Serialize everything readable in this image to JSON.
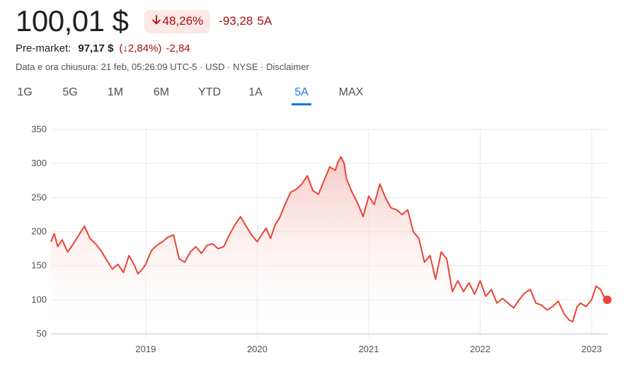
{
  "header": {
    "price": "100,01 $",
    "change_pct": "48,26%",
    "change_arrow_icon": "arrow-down-icon",
    "change_abs": "-93,28",
    "change_period": "5A"
  },
  "premarket": {
    "label": "Pre-market:",
    "price": "97,17 $",
    "pct": "(↓2,84%)",
    "abs": "-2,84"
  },
  "meta": {
    "date": "Data e ora chiusura: 21 feb, 05:26:09 UTC-5",
    "currency": "USD",
    "exchange": "NYSE",
    "disclaimer": "Disclaimer",
    "sep": " · "
  },
  "tabs": [
    "1G",
    "5G",
    "1M",
    "6M",
    "YTD",
    "1A",
    "5A",
    "MAX"
  ],
  "active_tab": "5A",
  "colors": {
    "line": "#ea4335",
    "fill_top": "#f6c4bf",
    "negative": "#a50e0e",
    "accent": "#1a73e8"
  },
  "chart_data": {
    "type": "area",
    "ylim": [
      50,
      350
    ],
    "yticks": [
      50,
      100,
      150,
      200,
      250,
      300,
      350
    ],
    "xlim": [
      2018.15,
      2023.14
    ],
    "xticks": [
      {
        "x": 2019,
        "label": "2019"
      },
      {
        "x": 2020,
        "label": "2020"
      },
      {
        "x": 2021,
        "label": "2021"
      },
      {
        "x": 2022,
        "label": "2022"
      },
      {
        "x": 2023,
        "label": "2023"
      }
    ],
    "grid": true,
    "series": [
      {
        "x": [
          2018.15,
          2018.18,
          2018.21,
          2018.25,
          2018.3,
          2018.35,
          2018.4,
          2018.45,
          2018.5,
          2018.55,
          2018.6,
          2018.65,
          2018.7,
          2018.75,
          2018.8,
          2018.85,
          2018.9,
          2018.93,
          2018.97,
          2019.0,
          2019.05,
          2019.1,
          2019.15,
          2019.2,
          2019.25,
          2019.3,
          2019.35,
          2019.4,
          2019.45,
          2019.5,
          2019.55,
          2019.6,
          2019.65,
          2019.7,
          2019.75,
          2019.8,
          2019.85,
          2019.9,
          2019.95,
          2020.0,
          2020.05,
          2020.08,
          2020.12,
          2020.16,
          2020.2,
          2020.25,
          2020.3,
          2020.35,
          2020.4,
          2020.45,
          2020.5,
          2020.55,
          2020.6,
          2020.65,
          2020.7,
          2020.72,
          2020.75,
          2020.78,
          2020.8,
          2020.85,
          2020.9,
          2020.95,
          2021.0,
          2021.05,
          2021.1,
          2021.15,
          2021.2,
          2021.25,
          2021.3,
          2021.35,
          2021.4,
          2021.45,
          2021.5,
          2021.55,
          2021.6,
          2021.65,
          2021.7,
          2021.75,
          2021.8,
          2021.85,
          2021.9,
          2021.95,
          2022.0,
          2022.05,
          2022.1,
          2022.15,
          2022.2,
          2022.25,
          2022.3,
          2022.35,
          2022.4,
          2022.45,
          2022.5,
          2022.55,
          2022.6,
          2022.65,
          2022.7,
          2022.75,
          2022.8,
          2022.83,
          2022.87,
          2022.9,
          2022.95,
          2023.0,
          2023.04,
          2023.08,
          2023.11,
          2023.14
        ],
        "y": [
          185,
          197,
          178,
          188,
          170,
          182,
          195,
          208,
          190,
          182,
          172,
          158,
          145,
          152,
          140,
          165,
          150,
          138,
          145,
          152,
          172,
          180,
          185,
          192,
          195,
          160,
          155,
          170,
          178,
          168,
          180,
          182,
          175,
          178,
          195,
          210,
          222,
          208,
          195,
          185,
          198,
          205,
          190,
          210,
          220,
          240,
          258,
          262,
          270,
          282,
          260,
          255,
          275,
          295,
          290,
          300,
          310,
          300,
          278,
          258,
          242,
          222,
          252,
          240,
          270,
          250,
          235,
          232,
          225,
          232,
          200,
          190,
          155,
          165,
          130,
          170,
          160,
          112,
          128,
          112,
          125,
          108,
          128,
          105,
          115,
          95,
          102,
          95,
          88,
          100,
          110,
          115,
          95,
          92,
          85,
          90,
          98,
          80,
          70,
          68,
          90,
          95,
          90,
          100,
          120,
          115,
          105,
          100
        ]
      }
    ]
  }
}
